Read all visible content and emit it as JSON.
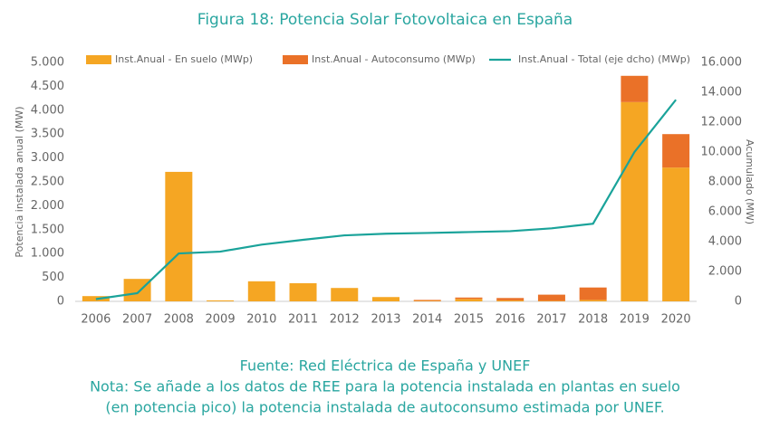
{
  "chart_data": {
    "type": "bar",
    "title": "Figura 18: Potencia Solar Fotovoltaica en España",
    "y_label": "Potencia instalada anual (MW)",
    "y2_label": "Acumulado (MW)",
    "categories": [
      "2006",
      "2007",
      "2008",
      "2009",
      "2010",
      "2011",
      "2012",
      "2013",
      "2014",
      "2015",
      "2016",
      "2017",
      "2018",
      "2019",
      "2020"
    ],
    "series": [
      {
        "name": "Inst.Anual - En suelo (MWp)",
        "color": "#f5a623",
        "stack": true,
        "values": [
          110,
          470,
          2710,
          20,
          420,
          380,
          280,
          90,
          10,
          50,
          20,
          10,
          30,
          4170,
          2800
        ]
      },
      {
        "name": "Inst.Anual - Autoconsumo (MWp)",
        "color": "#ea7128",
        "stack": true,
        "values": [
          0,
          0,
          0,
          0,
          0,
          0,
          0,
          0,
          20,
          30,
          50,
          130,
          260,
          550,
          700
        ]
      },
      {
        "name": "Inst.Anual - Total (eje dcho) (MWp)",
        "color": "#1aa39a",
        "type": "line",
        "axis": "y2",
        "values": [
          150,
          550,
          3210,
          3330,
          3800,
          4120,
          4420,
          4530,
          4580,
          4640,
          4700,
          4890,
          5200,
          10000,
          13500
        ]
      }
    ],
    "ylim": [
      0,
      5000
    ],
    "yticks": [
      0,
      500,
      {
        "value": 1000,
        "label": "1.000"
      },
      {
        "value": 1500,
        "label": "1.500"
      },
      {
        "value": 2000,
        "label": "2.000"
      },
      {
        "value": 2500,
        "label": "2.500"
      },
      {
        "value": 3000,
        "label": "3.000"
      },
      {
        "value": 3500,
        "label": "3.500"
      },
      {
        "value": 4000,
        "label": "4.000"
      },
      {
        "value": 4500,
        "label": "4.500"
      },
      {
        "value": 5000,
        "label": "5.000"
      }
    ],
    "y2lim": [
      0,
      16000
    ],
    "y2ticks": [
      0,
      {
        "value": 2000,
        "label": "2.000"
      },
      {
        "value": 4000,
        "label": "4.000"
      },
      {
        "value": 6000,
        "label": "6.000"
      },
      {
        "value": 8000,
        "label": "8.000"
      },
      {
        "value": 10000,
        "label": "10.000"
      },
      {
        "value": 12000,
        "label": "12.000"
      },
      {
        "value": 14000,
        "label": "14.000"
      },
      {
        "value": 16000,
        "label": "16.000"
      }
    ],
    "source": "Fuente: Red Eléctrica de España y UNEF",
    "note_lines": [
      "Nota: Se añade a los datos de REE para la potencia instalada en plantas en suelo",
      "(en potencia pico) la potencia instalada de autoconsumo estimada por UNEF."
    ]
  }
}
